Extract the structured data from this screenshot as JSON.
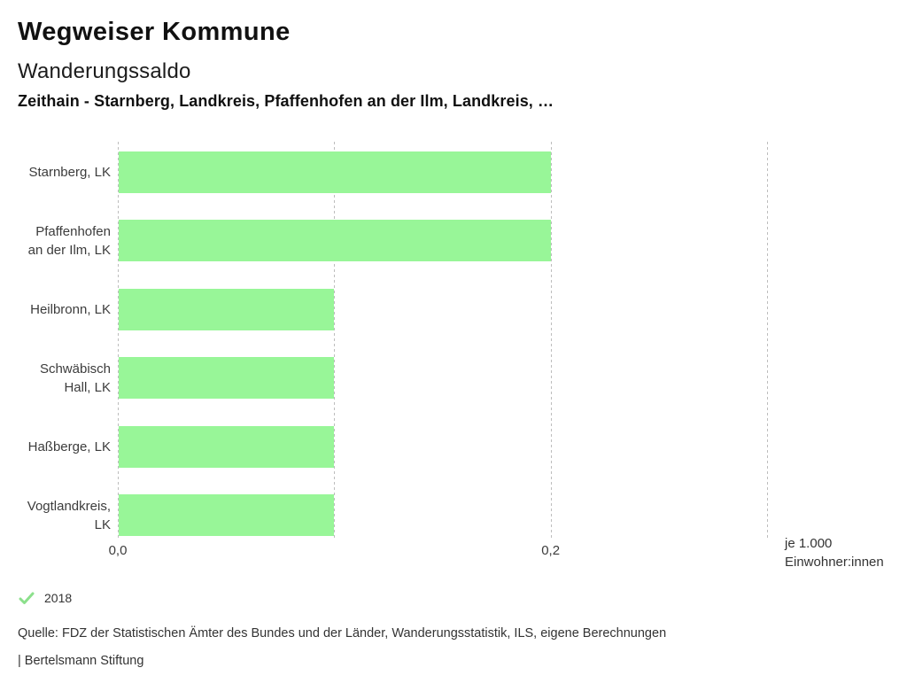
{
  "header": {
    "title": "Wegweiser Kommune",
    "subtitle": "Wanderungssaldo",
    "comparison": "Zeithain - Starnberg, Landkreis, Pfaffenhofen an der Ilm, Landkreis, …"
  },
  "chart_data": {
    "type": "bar",
    "orientation": "horizontal",
    "title": "Wanderungssaldo",
    "unit": "je 1.000 Einwohner:innen",
    "unit_label_lines": [
      "je 1.000",
      "Einwohner:innen"
    ],
    "categories": [
      "Starnberg, LK",
      "Pfaffenhofen an der Ilm, LK",
      "Heilbronn, LK",
      "Schwäbisch Hall, LK",
      "Haßberge, LK",
      "Vogtlandkreis, LK"
    ],
    "category_lines": [
      [
        "Starnberg, LK"
      ],
      [
        "Pfaffenhofen",
        "an der Ilm, LK"
      ],
      [
        "Heilbronn, LK"
      ],
      [
        "Schwäbisch",
        "Hall, LK"
      ],
      [
        "Haßberge, LK"
      ],
      [
        "Vogtlandkreis,",
        "LK"
      ]
    ],
    "series": [
      {
        "name": "2018",
        "values": [
          0.2,
          0.2,
          0.1,
          0.1,
          0.1,
          0.1
        ]
      }
    ],
    "values": [
      0.2,
      0.2,
      0.1,
      0.1,
      0.1,
      0.1
    ],
    "xlim": [
      0,
      0.3
    ],
    "ticks": [
      {
        "value": 0.0,
        "label": "0,0"
      },
      {
        "value": 0.1,
        "label": ""
      },
      {
        "value": 0.2,
        "label": "0,2"
      },
      {
        "value": 0.3,
        "label": ""
      }
    ],
    "grid": "vertical-dotted",
    "legend_position": "bottom-left",
    "bar_color": "#98f698",
    "gridline_color": "#bdbdbd"
  },
  "legend": {
    "year": "2018",
    "check_icon_color": "#8ce08c"
  },
  "footer": {
    "source": "Quelle: FDZ der Statistischen Ämter des Bundes und der Länder, Wanderungsstatistik, ILS, eigene Berechnungen",
    "attribution": "| Bertelsmann Stiftung"
  }
}
